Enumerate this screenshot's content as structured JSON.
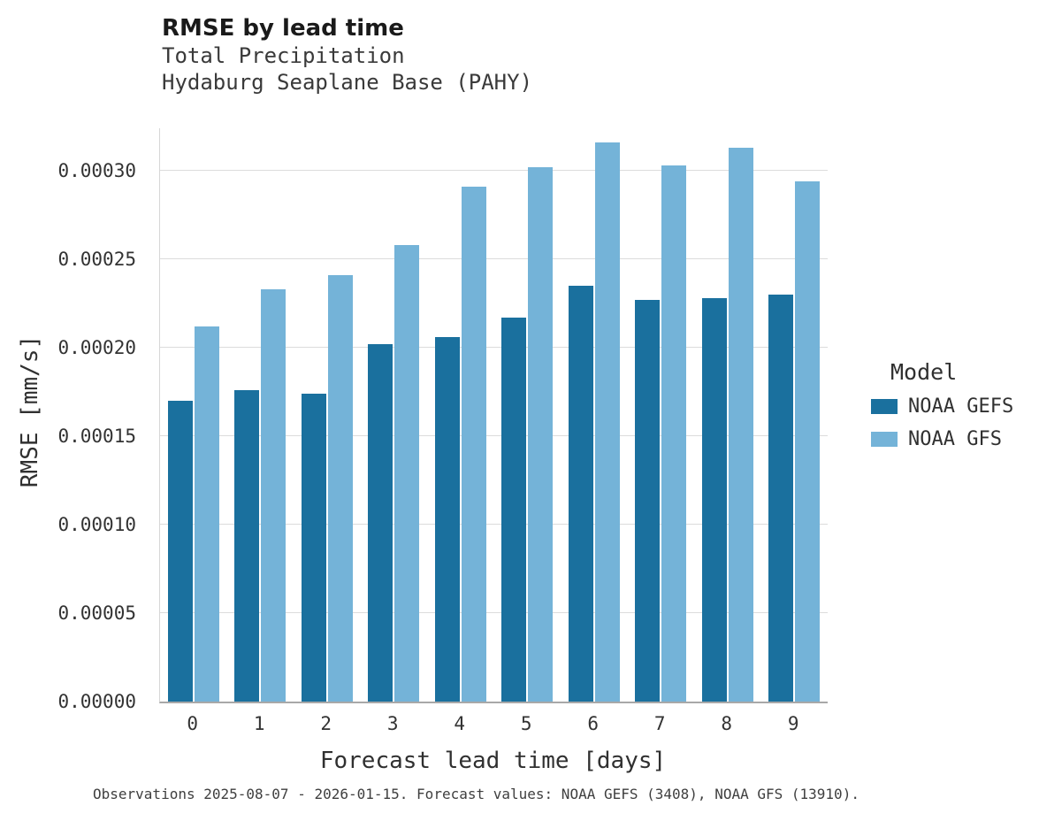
{
  "title": "RMSE by lead time",
  "subtitle1": "Total Precipitation",
  "subtitle2": "Hydaburg Seaplane Base (PAHY)",
  "caption": "Observations 2025-08-07 - 2026-01-15. Forecast values: NOAA GEFS (3408), NOAA GFS (13910).",
  "legend": {
    "title": "Model",
    "entries": [
      {
        "label": "NOAA GEFS",
        "color": "#1a709e"
      },
      {
        "label": "NOAA GFS",
        "color": "#74b3d8"
      }
    ]
  },
  "chart_data": {
    "type": "bar",
    "title": "RMSE by lead time",
    "subtitle": "Total Precipitation — Hydaburg Seaplane Base (PAHY)",
    "xlabel": "Forecast lead time [days]",
    "ylabel": "RMSE [mm/s]",
    "categories": [
      "0",
      "1",
      "2",
      "3",
      "4",
      "5",
      "6",
      "7",
      "8",
      "9"
    ],
    "series": [
      {
        "name": "NOAA GEFS",
        "color": "#1a709e",
        "values": [
          0.00017,
          0.000176,
          0.000174,
          0.000202,
          0.000206,
          0.000217,
          0.000235,
          0.000227,
          0.000228,
          0.00023
        ]
      },
      {
        "name": "NOAA GFS",
        "color": "#74b3d8",
        "values": [
          0.000212,
          0.000233,
          0.000241,
          0.000258,
          0.000291,
          0.000302,
          0.000316,
          0.000303,
          0.000313,
          0.000294
        ]
      }
    ],
    "ylim": [
      0,
      0.000324
    ],
    "yticks": [
      0,
      5e-05,
      0.0001,
      0.00015,
      0.0002,
      0.00025,
      0.0003
    ],
    "ytick_labels": [
      "0.00000",
      "0.00005",
      "0.00010",
      "0.00015",
      "0.00020",
      "0.00025",
      "0.00030"
    ],
    "grid": "horizontal",
    "legend_position": "right"
  }
}
